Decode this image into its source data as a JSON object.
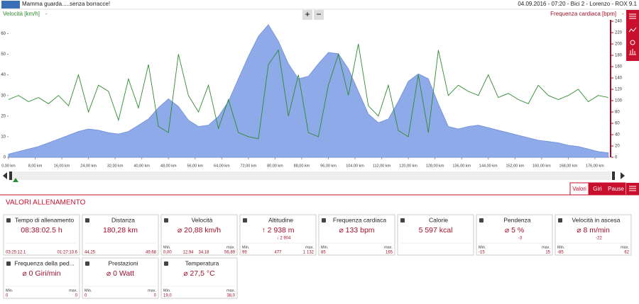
{
  "header": {
    "title": "Mamma guarda.....senza borracce!",
    "info": "04.09.2016 - 07:20 - Bici 2 - Lorenzo - ROX 9.1"
  },
  "chart_data": {
    "type": "line",
    "y_label": "Velocità [km/h]",
    "y2_label": "Frequenza cardiaca [bpm]",
    "zoom_in": "+",
    "zoom_out": "−",
    "x": [
      0,
      3,
      6,
      9,
      12,
      15,
      18,
      21,
      24,
      27,
      30,
      33,
      36,
      39,
      42,
      45,
      48,
      51,
      54,
      57,
      60,
      63,
      66,
      69,
      72,
      75,
      78,
      81,
      84,
      87,
      90,
      93,
      96,
      99,
      102,
      105,
      108,
      111,
      114,
      117,
      120,
      123,
      126,
      129,
      132,
      135,
      138,
      141,
      144,
      147,
      150,
      153,
      156,
      159,
      162,
      165,
      168,
      171,
      174,
      177,
      180
    ],
    "xlim": [
      0,
      180.28
    ],
    "xticks": [
      {
        "value": 0,
        "label": "0,00 km"
      },
      {
        "value": 8,
        "label": "8,00 km"
      },
      {
        "value": 16,
        "label": "16,00 km"
      },
      {
        "value": 24,
        "label": "24,00 km"
      },
      {
        "value": 32,
        "label": "32,00 km"
      },
      {
        "value": 40,
        "label": "40,00 km"
      },
      {
        "value": 48,
        "label": "48,00 km"
      },
      {
        "value": 56,
        "label": "56,00 km"
      },
      {
        "value": 64,
        "label": "64,00 km"
      },
      {
        "value": 72,
        "label": "72,00 km"
      },
      {
        "value": 80,
        "label": "80,00 km"
      },
      {
        "value": 88,
        "label": "88,00 km"
      },
      {
        "value": 96,
        "label": "96,00 km"
      },
      {
        "value": 104,
        "label": "104,00 km"
      },
      {
        "value": 112,
        "label": "112,00 km"
      },
      {
        "value": 120,
        "label": "120,00 km"
      },
      {
        "value": 128,
        "label": "128,00 km"
      },
      {
        "value": 136,
        "label": "136,00 km"
      },
      {
        "value": 144,
        "label": "144,00 km"
      },
      {
        "value": 152,
        "label": "152,00 km"
      },
      {
        "value": 160,
        "label": "160,00 km"
      },
      {
        "value": 168,
        "label": "168,00 km"
      },
      {
        "value": 176,
        "label": "176,00 km"
      }
    ],
    "ylim": [
      0,
      66
    ],
    "yticks": [
      0,
      10,
      20,
      30,
      40,
      50,
      60
    ],
    "y2lim": [
      0,
      240
    ],
    "y2ticks": [
      0,
      20,
      40,
      60,
      80,
      100,
      120,
      140,
      160,
      180,
      200,
      220,
      240
    ],
    "y3lim": [
      74,
      1159
    ],
    "series": [
      {
        "kind": "area",
        "axis": "y3",
        "color": "#8eaae8",
        "values": [
          100,
          120,
          140,
          160,
          190,
          220,
          250,
          280,
          300,
          290,
          270,
          260,
          280,
          330,
          380,
          470,
          540,
          480,
          370,
          320,
          330,
          400,
          520,
          700,
          880,
          1040,
          1132,
          1000,
          820,
          700,
          720,
          820,
          910,
          900,
          780,
          600,
          420,
          350,
          380,
          520,
          680,
          740,
          700,
          500,
          320,
          300,
          320,
          330,
          310,
          290,
          270,
          250,
          230,
          210,
          200,
          190,
          170,
          160,
          140,
          120,
          110
        ]
      },
      {
        "kind": "line",
        "color": "#2e8b2e",
        "values": [
          28,
          30,
          27,
          29,
          26,
          30,
          25,
          40,
          22,
          35,
          32,
          18,
          38,
          24,
          45,
          15,
          12,
          50,
          30,
          22,
          35,
          14,
          28,
          12,
          10,
          9,
          45,
          52,
          20,
          40,
          12,
          10,
          35,
          50,
          30,
          55,
          25,
          20,
          35,
          13,
          10,
          40,
          12,
          52,
          30,
          35,
          32,
          30,
          40,
          29,
          31,
          28,
          26,
          35,
          30,
          28,
          30,
          33,
          27,
          30,
          29
        ]
      }
    ]
  },
  "tabs": [
    "Valori",
    "Giri",
    "Pause"
  ],
  "section": "VALORI ALLENAMENTO",
  "cards": [
    {
      "title": "Tempo di allenamento",
      "value": "08:38:02.5 h",
      "min": "03:25:12.1",
      "max": "01:27:13.6"
    },
    {
      "title": "Distanza",
      "value": "180,28 km",
      "min": "44,25",
      "max": "49,68"
    },
    {
      "title": "Velocità",
      "value": "⌀ 20,88 km/h",
      "min_label": "Min.",
      "max_label": "max.",
      "min": "0,00",
      "mids": [
        "12,94",
        "34,18"
      ],
      "max": "56,89"
    },
    {
      "title": "Altitudine",
      "value": "↑ 2 938 m",
      "sub": "↓ 2 904",
      "min_label": "Min.",
      "max_label": "max.",
      "min": "99",
      "mids": [
        "477"
      ],
      "max": "1 132"
    },
    {
      "title": "Frequenza cardiaca",
      "value": "⌀ 133 bpm",
      "min_label": "Min.",
      "max_label": "max.",
      "min": "85",
      "max": "165"
    },
    {
      "title": "Calorie",
      "value": "5 597 kcal"
    },
    {
      "title": "Pendenza",
      "value": "⌀ 5 %",
      "sub": "-3",
      "min_label": "Min.",
      "max_label": "max.",
      "min": "-15",
      "max": "15"
    },
    {
      "title": "Velocità in ascesa",
      "value": "⌀ 8 m/min",
      "sub": "-22",
      "min_label": "Min.",
      "max_label": "max.",
      "min": "-85",
      "max": "62"
    },
    {
      "title": "Frequenza della ped...",
      "value": "⌀ 0 Giri/min",
      "min_label": "Min.",
      "max_label": "max.",
      "min": "0",
      "max": "0"
    },
    {
      "title": "Prestazioni",
      "value": "⌀ 0 Watt",
      "min_label": "Min.",
      "max_label": "max.",
      "min": "0",
      "max": "0"
    },
    {
      "title": "Temperatura",
      "value": "⌀ 27,5 °C",
      "min_label": "Min.",
      "max_label": "max.",
      "min": "19,0",
      "max": "38,0"
    }
  ]
}
